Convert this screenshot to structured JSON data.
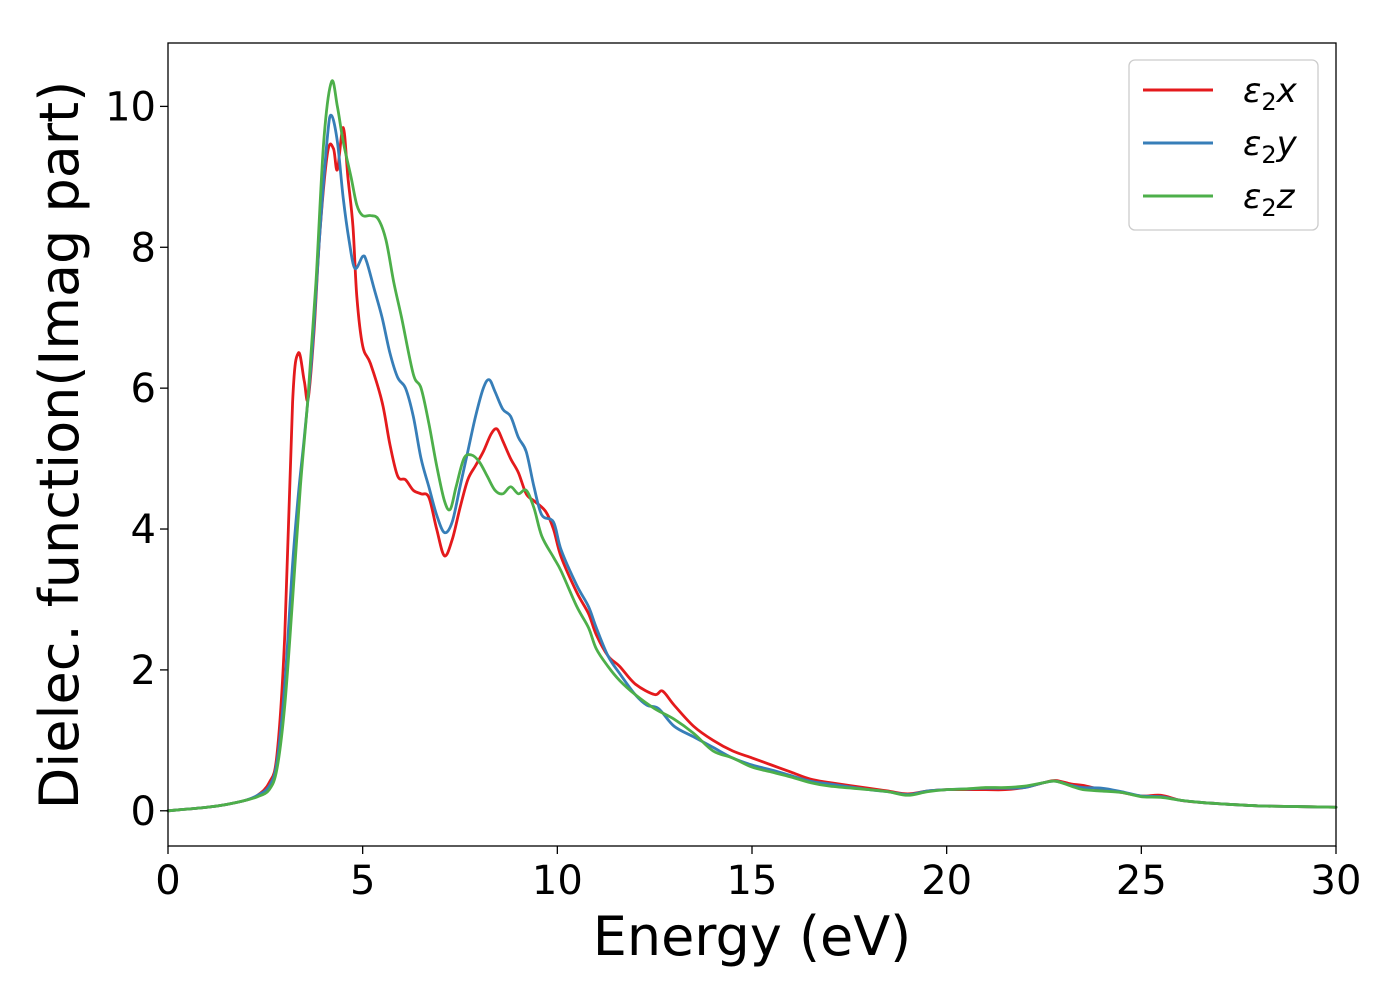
{
  "chart_data": {
    "type": "line",
    "xlabel": "Energy (eV)",
    "ylabel": "Dielec. function(Imag part)",
    "xlim": [
      0,
      30
    ],
    "ylim": [
      -0.5,
      10.9
    ],
    "xticks": [
      0,
      5,
      10,
      15,
      20,
      25,
      30
    ],
    "yticks": [
      0,
      2,
      4,
      6,
      8,
      10
    ],
    "grid": false,
    "legend_position": "top-right",
    "series": [
      {
        "name": "ε2x",
        "legend_base": "ε",
        "legend_sub": "2",
        "legend_suffix": "x",
        "color": "#e41a1c",
        "points": [
          [
            0,
            0
          ],
          [
            1,
            0.05
          ],
          [
            1.5,
            0.09
          ],
          [
            2,
            0.15
          ],
          [
            2.3,
            0.22
          ],
          [
            2.6,
            0.4
          ],
          [
            2.8,
            0.8
          ],
          [
            3.0,
            2.5
          ],
          [
            3.2,
            5.8
          ],
          [
            3.35,
            6.5
          ],
          [
            3.5,
            6.1
          ],
          [
            3.6,
            5.85
          ],
          [
            3.75,
            6.8
          ],
          [
            3.9,
            8.2
          ],
          [
            4.1,
            9.35
          ],
          [
            4.25,
            9.4
          ],
          [
            4.35,
            9.1
          ],
          [
            4.5,
            9.7
          ],
          [
            4.62,
            9.0
          ],
          [
            4.75,
            8.3
          ],
          [
            4.85,
            7.3
          ],
          [
            5.0,
            6.6
          ],
          [
            5.2,
            6.35
          ],
          [
            5.5,
            5.8
          ],
          [
            5.7,
            5.2
          ],
          [
            5.9,
            4.75
          ],
          [
            6.1,
            4.7
          ],
          [
            6.3,
            4.55
          ],
          [
            6.5,
            4.5
          ],
          [
            6.7,
            4.45
          ],
          [
            6.9,
            4.0
          ],
          [
            7.1,
            3.62
          ],
          [
            7.3,
            3.85
          ],
          [
            7.5,
            4.3
          ],
          [
            7.7,
            4.7
          ],
          [
            7.9,
            4.9
          ],
          [
            8.1,
            5.1
          ],
          [
            8.3,
            5.35
          ],
          [
            8.45,
            5.42
          ],
          [
            8.6,
            5.25
          ],
          [
            8.8,
            5.0
          ],
          [
            9.0,
            4.8
          ],
          [
            9.2,
            4.5
          ],
          [
            9.4,
            4.4
          ],
          [
            9.7,
            4.25
          ],
          [
            9.9,
            4.0
          ],
          [
            10.1,
            3.6
          ],
          [
            10.5,
            3.1
          ],
          [
            10.8,
            2.8
          ],
          [
            11.0,
            2.5
          ],
          [
            11.3,
            2.2
          ],
          [
            11.6,
            2.05
          ],
          [
            12.0,
            1.8
          ],
          [
            12.5,
            1.65
          ],
          [
            12.7,
            1.7
          ],
          [
            13.0,
            1.5
          ],
          [
            13.5,
            1.2
          ],
          [
            14.0,
            1.0
          ],
          [
            14.5,
            0.85
          ],
          [
            15.0,
            0.75
          ],
          [
            15.5,
            0.65
          ],
          [
            16.0,
            0.55
          ],
          [
            16.5,
            0.45
          ],
          [
            17.0,
            0.4
          ],
          [
            18.0,
            0.32
          ],
          [
            18.5,
            0.28
          ],
          [
            19.0,
            0.24
          ],
          [
            19.5,
            0.28
          ],
          [
            20.0,
            0.3
          ],
          [
            20.5,
            0.3
          ],
          [
            21.0,
            0.3
          ],
          [
            21.5,
            0.3
          ],
          [
            22.0,
            0.33
          ],
          [
            22.5,
            0.4
          ],
          [
            22.8,
            0.43
          ],
          [
            23.2,
            0.38
          ],
          [
            23.5,
            0.36
          ],
          [
            24.0,
            0.3
          ],
          [
            24.5,
            0.26
          ],
          [
            25.0,
            0.21
          ],
          [
            25.5,
            0.22
          ],
          [
            26.0,
            0.15
          ],
          [
            26.5,
            0.12
          ],
          [
            27.0,
            0.1
          ],
          [
            28.0,
            0.07
          ],
          [
            29.0,
            0.06
          ],
          [
            30.0,
            0.05
          ]
        ]
      },
      {
        "name": "ε2y",
        "legend_base": "ε",
        "legend_sub": "2",
        "legend_suffix": "y",
        "color": "#377eb8",
        "points": [
          [
            0,
            0
          ],
          [
            1,
            0.05
          ],
          [
            1.5,
            0.09
          ],
          [
            2,
            0.15
          ],
          [
            2.3,
            0.22
          ],
          [
            2.6,
            0.35
          ],
          [
            2.8,
            0.7
          ],
          [
            3.0,
            1.8
          ],
          [
            3.2,
            3.5
          ],
          [
            3.35,
            4.5
          ],
          [
            3.5,
            5.3
          ],
          [
            3.7,
            6.5
          ],
          [
            3.9,
            8.2
          ],
          [
            4.1,
            9.6
          ],
          [
            4.2,
            9.87
          ],
          [
            4.35,
            9.5
          ],
          [
            4.5,
            8.7
          ],
          [
            4.65,
            8.1
          ],
          [
            4.8,
            7.7
          ],
          [
            5.0,
            7.87
          ],
          [
            5.1,
            7.8
          ],
          [
            5.3,
            7.4
          ],
          [
            5.5,
            7.0
          ],
          [
            5.7,
            6.5
          ],
          [
            5.9,
            6.15
          ],
          [
            6.1,
            6.0
          ],
          [
            6.3,
            5.6
          ],
          [
            6.5,
            5.0
          ],
          [
            6.7,
            4.6
          ],
          [
            6.9,
            4.2
          ],
          [
            7.1,
            3.95
          ],
          [
            7.3,
            4.1
          ],
          [
            7.5,
            4.6
          ],
          [
            7.7,
            5.1
          ],
          [
            7.9,
            5.6
          ],
          [
            8.1,
            6.0
          ],
          [
            8.25,
            6.12
          ],
          [
            8.4,
            5.95
          ],
          [
            8.6,
            5.7
          ],
          [
            8.8,
            5.6
          ],
          [
            9.0,
            5.3
          ],
          [
            9.2,
            5.1
          ],
          [
            9.4,
            4.6
          ],
          [
            9.6,
            4.2
          ],
          [
            9.9,
            4.1
          ],
          [
            10.1,
            3.7
          ],
          [
            10.5,
            3.2
          ],
          [
            10.8,
            2.9
          ],
          [
            11.0,
            2.6
          ],
          [
            11.3,
            2.2
          ],
          [
            11.6,
            1.95
          ],
          [
            12.0,
            1.65
          ],
          [
            12.3,
            1.5
          ],
          [
            12.6,
            1.45
          ],
          [
            13.0,
            1.2
          ],
          [
            13.5,
            1.05
          ],
          [
            14.0,
            0.9
          ],
          [
            14.5,
            0.75
          ],
          [
            15.0,
            0.65
          ],
          [
            15.5,
            0.58
          ],
          [
            16.0,
            0.5
          ],
          [
            16.5,
            0.42
          ],
          [
            17.0,
            0.38
          ],
          [
            18.0,
            0.3
          ],
          [
            18.5,
            0.27
          ],
          [
            19.0,
            0.23
          ],
          [
            19.5,
            0.28
          ],
          [
            20.0,
            0.3
          ],
          [
            20.5,
            0.31
          ],
          [
            21.0,
            0.32
          ],
          [
            21.5,
            0.32
          ],
          [
            22.0,
            0.33
          ],
          [
            22.5,
            0.4
          ],
          [
            22.8,
            0.42
          ],
          [
            23.2,
            0.36
          ],
          [
            23.5,
            0.33
          ],
          [
            24.0,
            0.32
          ],
          [
            24.5,
            0.27
          ],
          [
            25.0,
            0.21
          ],
          [
            25.5,
            0.2
          ],
          [
            26.0,
            0.15
          ],
          [
            26.5,
            0.12
          ],
          [
            27.0,
            0.1
          ],
          [
            28.0,
            0.07
          ],
          [
            29.0,
            0.06
          ],
          [
            30.0,
            0.05
          ]
        ]
      },
      {
        "name": "ε2z",
        "legend_base": "ε",
        "legend_sub": "2",
        "legend_suffix": "z",
        "color": "#4daf4a",
        "points": [
          [
            0,
            0
          ],
          [
            1,
            0.05
          ],
          [
            1.5,
            0.09
          ],
          [
            2,
            0.15
          ],
          [
            2.3,
            0.2
          ],
          [
            2.6,
            0.3
          ],
          [
            2.8,
            0.6
          ],
          [
            3.0,
            1.5
          ],
          [
            3.2,
            3.0
          ],
          [
            3.4,
            4.6
          ],
          [
            3.6,
            5.9
          ],
          [
            3.8,
            7.5
          ],
          [
            4.0,
            9.5
          ],
          [
            4.2,
            10.35
          ],
          [
            4.35,
            10.0
          ],
          [
            4.5,
            9.5
          ],
          [
            4.7,
            9.0
          ],
          [
            4.85,
            8.6
          ],
          [
            5.0,
            8.45
          ],
          [
            5.2,
            8.45
          ],
          [
            5.4,
            8.4
          ],
          [
            5.6,
            8.1
          ],
          [
            5.8,
            7.5
          ],
          [
            6.0,
            7.0
          ],
          [
            6.3,
            6.2
          ],
          [
            6.5,
            6.0
          ],
          [
            6.7,
            5.5
          ],
          [
            6.9,
            4.9
          ],
          [
            7.1,
            4.4
          ],
          [
            7.25,
            4.28
          ],
          [
            7.4,
            4.6
          ],
          [
            7.6,
            5.0
          ],
          [
            7.8,
            5.05
          ],
          [
            8.0,
            4.95
          ],
          [
            8.2,
            4.75
          ],
          [
            8.4,
            4.55
          ],
          [
            8.6,
            4.5
          ],
          [
            8.8,
            4.6
          ],
          [
            9.0,
            4.5
          ],
          [
            9.2,
            4.55
          ],
          [
            9.4,
            4.3
          ],
          [
            9.6,
            3.9
          ],
          [
            9.9,
            3.6
          ],
          [
            10.1,
            3.4
          ],
          [
            10.5,
            2.9
          ],
          [
            10.8,
            2.6
          ],
          [
            11.0,
            2.3
          ],
          [
            11.3,
            2.05
          ],
          [
            11.6,
            1.85
          ],
          [
            12.0,
            1.65
          ],
          [
            12.5,
            1.45
          ],
          [
            13.0,
            1.3
          ],
          [
            13.5,
            1.1
          ],
          [
            14.0,
            0.85
          ],
          [
            14.5,
            0.75
          ],
          [
            15.0,
            0.62
          ],
          [
            15.5,
            0.55
          ],
          [
            16.0,
            0.48
          ],
          [
            16.5,
            0.4
          ],
          [
            17.0,
            0.35
          ],
          [
            18.0,
            0.3
          ],
          [
            18.5,
            0.27
          ],
          [
            19.0,
            0.22
          ],
          [
            19.5,
            0.27
          ],
          [
            20.0,
            0.3
          ],
          [
            20.5,
            0.31
          ],
          [
            21.0,
            0.33
          ],
          [
            21.5,
            0.33
          ],
          [
            22.0,
            0.35
          ],
          [
            22.5,
            0.4
          ],
          [
            22.8,
            0.42
          ],
          [
            23.2,
            0.35
          ],
          [
            23.5,
            0.3
          ],
          [
            24.0,
            0.28
          ],
          [
            24.5,
            0.26
          ],
          [
            25.0,
            0.2
          ],
          [
            25.5,
            0.19
          ],
          [
            26.0,
            0.15
          ],
          [
            26.5,
            0.12
          ],
          [
            27.0,
            0.1
          ],
          [
            28.0,
            0.07
          ],
          [
            29.0,
            0.06
          ],
          [
            30.0,
            0.05
          ]
        ]
      }
    ]
  }
}
